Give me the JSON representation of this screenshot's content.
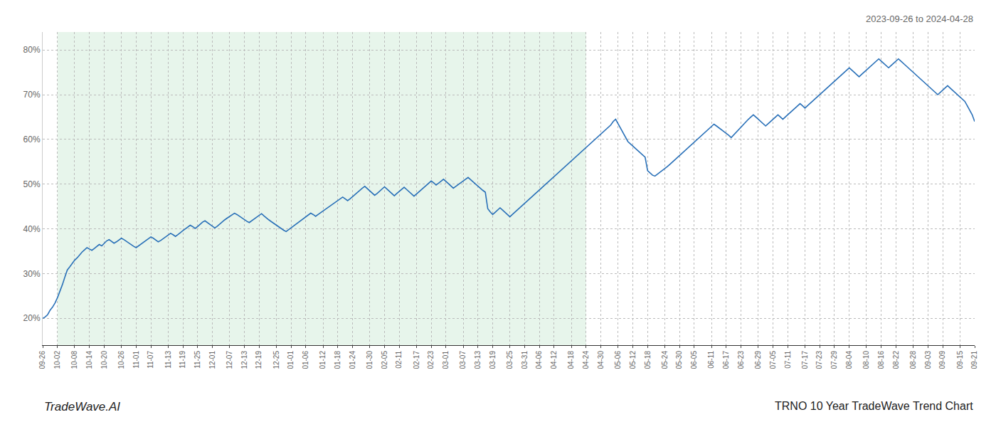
{
  "chart_data": {
    "type": "line",
    "title": "TRNO 10 Year TradeWave Trend Chart",
    "subtitle": "2023-09-26 to 2024-04-28",
    "annotations": [
      "TradeWave.AI"
    ],
    "color": "#2970b8",
    "shaded": {
      "from": "10-02",
      "to": "04-24",
      "color": "#d4edda"
    },
    "grid": true,
    "ylim": [
      14,
      84
    ],
    "yticks": [
      {
        "value": 20,
        "label": "20%"
      },
      {
        "value": 30,
        "label": "30%"
      },
      {
        "value": 40,
        "label": "40%"
      },
      {
        "value": 50,
        "label": "50%"
      },
      {
        "value": 60,
        "label": "60%"
      },
      {
        "value": 70,
        "label": "70%"
      },
      {
        "value": 80,
        "label": "80%"
      }
    ],
    "categories": [
      "09-26",
      null,
      null,
      null,
      null,
      null,
      "10-02",
      null,
      null,
      null,
      null,
      null,
      null,
      "10-08",
      null,
      null,
      null,
      null,
      null,
      "10-14",
      null,
      null,
      null,
      null,
      null,
      "10-20",
      null,
      null,
      null,
      null,
      null,
      null,
      "10-26",
      null,
      null,
      null,
      null,
      null,
      "11-01",
      null,
      null,
      null,
      null,
      null,
      "11-07",
      null,
      null,
      null,
      null,
      null,
      null,
      "11-13",
      null,
      null,
      null,
      null,
      null,
      "11-19",
      null,
      null,
      null,
      null,
      null,
      "11-25",
      null,
      null,
      null,
      null,
      null,
      "12-01",
      null,
      null,
      null,
      null,
      null,
      null,
      "12-07",
      null,
      null,
      null,
      null,
      null,
      "12-13",
      null,
      null,
      null,
      null,
      null,
      "12-19",
      null,
      null,
      null,
      null,
      null,
      null,
      "12-25",
      null,
      null,
      null,
      null,
      null,
      "01-01",
      null,
      null,
      null,
      null,
      null,
      "01-06",
      null,
      null,
      null,
      null,
      null,
      null,
      "01-12",
      null,
      null,
      null,
      null,
      null,
      "01-18",
      null,
      null,
      null,
      null,
      null,
      "01-24",
      null,
      null,
      null,
      null,
      null,
      null,
      "01-30",
      null,
      null,
      null,
      null,
      null,
      "02-05",
      null,
      null,
      null,
      null,
      null,
      "02-11",
      null,
      null,
      null,
      null,
      null,
      null,
      "02-17",
      null,
      null,
      null,
      null,
      null,
      "02-23",
      null,
      null,
      null,
      null,
      null,
      "03-01",
      null,
      null,
      null,
      null,
      null,
      null,
      "03-07",
      null,
      null,
      null,
      null,
      null,
      "03-13",
      null,
      null,
      null,
      null,
      null,
      "03-19",
      null,
      null,
      null,
      null,
      null,
      null,
      "03-25",
      null,
      null,
      null,
      null,
      null,
      "03-31",
      null,
      null,
      null,
      null,
      null,
      "04-06",
      null,
      null,
      null,
      null,
      null,
      "04-12",
      null,
      null,
      null,
      null,
      null,
      null,
      "04-18",
      null,
      null,
      null,
      null,
      null,
      "04-24",
      null,
      null,
      null,
      null,
      null,
      "04-30",
      null,
      null,
      null,
      null,
      null,
      null,
      "05-06",
      null,
      null,
      null,
      null,
      null,
      "05-12",
      null,
      null,
      null,
      null,
      null,
      "05-18",
      null,
      null,
      null,
      null,
      null,
      null,
      "05-24",
      null,
      null,
      null,
      null,
      null,
      "05-30",
      null,
      null,
      null,
      null,
      null,
      "06-05",
      null,
      null,
      null,
      null,
      null,
      null,
      "06-11",
      null,
      null,
      null,
      null,
      null,
      "06-17",
      null,
      null,
      null,
      null,
      null,
      "06-23",
      null,
      null,
      null,
      null,
      null,
      null,
      "06-29",
      null,
      null,
      null,
      null,
      null,
      "07-05",
      null,
      null,
      null,
      null,
      null,
      "07-11",
      null,
      null,
      null,
      null,
      null,
      null,
      "07-17",
      null,
      null,
      null,
      null,
      null,
      "07-23",
      null,
      null,
      null,
      null,
      null,
      "07-29",
      null,
      null,
      null,
      null,
      null,
      "08-04",
      null,
      null,
      null,
      null,
      null,
      null,
      "08-10",
      null,
      null,
      null,
      null,
      null,
      "08-16",
      null,
      null,
      null,
      null,
      null,
      "08-22",
      null,
      null,
      null,
      null,
      null,
      null,
      "08-28",
      null,
      null,
      null,
      null,
      null,
      "09-03",
      null,
      null,
      null,
      null,
      null,
      "09-09",
      null,
      null,
      null,
      null,
      null,
      null,
      "09-15",
      null,
      null,
      null,
      null,
      null,
      "09-21"
    ],
    "values": [
      20.0,
      20.3,
      20.8,
      21.8,
      22.5,
      23.4,
      24.6,
      26.0,
      27.5,
      29.2,
      30.8,
      31.5,
      32.2,
      33.0,
      33.5,
      34.2,
      34.8,
      35.3,
      35.8,
      35.5,
      35.2,
      35.6,
      36.0,
      36.5,
      36.2,
      36.8,
      37.3,
      37.6,
      37.2,
      36.8,
      37.1,
      37.5,
      37.9,
      37.6,
      37.2,
      36.8,
      36.4,
      36.1,
      35.8,
      36.2,
      36.6,
      36.9,
      37.3,
      37.8,
      38.2,
      37.9,
      37.5,
      37.1,
      37.4,
      37.8,
      38.3,
      38.7,
      39.0,
      38.7,
      38.3,
      38.7,
      39.2,
      39.6,
      40.0,
      40.4,
      40.8,
      40.5,
      40.1,
      40.5,
      41.0,
      41.5,
      41.8,
      41.4,
      41.0,
      40.6,
      40.2,
      40.6,
      41.1,
      41.6,
      42.0,
      42.4,
      42.8,
      43.2,
      43.5,
      43.2,
      42.8,
      42.4,
      42.0,
      41.7,
      41.4,
      41.8,
      42.2,
      42.6,
      43.0,
      43.4,
      42.9,
      42.4,
      42.0,
      41.6,
      41.2,
      40.8,
      40.4,
      40.0,
      39.7,
      39.4,
      39.8,
      40.2,
      40.7,
      41.1,
      41.5,
      41.9,
      42.3,
      42.7,
      43.1,
      43.5,
      43.2,
      42.8,
      43.2,
      43.6,
      44.0,
      44.4,
      44.8,
      45.2,
      45.6,
      46.0,
      46.4,
      46.8,
      47.1,
      46.7,
      46.3,
      46.7,
      47.2,
      47.7,
      48.2,
      48.6,
      49.1,
      49.5,
      49.0,
      48.5,
      48.0,
      47.5,
      47.9,
      48.4,
      48.9,
      49.4,
      48.9,
      48.4,
      47.9,
      47.4,
      47.9,
      48.4,
      48.9,
      49.3,
      48.8,
      48.3,
      47.8,
      47.3,
      47.8,
      48.3,
      48.8,
      49.3,
      49.8,
      50.2,
      50.7,
      50.3,
      49.8,
      50.2,
      50.7,
      51.1,
      50.6,
      50.1,
      49.6,
      49.1,
      49.5,
      49.9,
      50.3,
      50.7,
      51.1,
      51.5,
      51.0,
      50.5,
      50.0,
      49.5,
      49.0,
      48.6,
      48.2,
      44.5,
      43.8,
      43.2,
      43.7,
      44.2,
      44.7,
      44.2,
      43.7,
      43.2,
      42.7,
      43.2,
      43.7,
      44.2,
      44.7,
      45.2,
      45.7,
      46.2,
      46.7,
      47.2,
      47.7,
      48.2,
      48.7,
      49.2,
      49.7,
      50.2,
      50.7,
      51.2,
      51.7,
      52.2,
      52.7,
      53.2,
      53.7,
      54.2,
      54.7,
      55.2,
      55.7,
      56.2,
      56.7,
      57.2,
      57.7,
      58.2,
      58.7,
      59.2,
      59.7,
      60.2,
      60.7,
      61.2,
      61.7,
      62.2,
      62.7,
      63.2,
      64.0,
      64.5,
      63.5,
      62.5,
      61.5,
      60.5,
      59.5,
      59.0,
      58.5,
      58.0,
      57.5,
      57.0,
      56.5,
      56.0,
      53.0,
      52.5,
      52.0,
      51.8,
      52.2,
      52.6,
      53.0,
      53.4,
      53.9,
      54.4,
      54.9,
      55.4,
      55.9,
      56.4,
      56.9,
      57.4,
      57.9,
      58.4,
      58.9,
      59.4,
      59.9,
      60.4,
      60.9,
      61.4,
      61.9,
      62.4,
      62.9,
      63.4,
      63.0,
      62.6,
      62.2,
      61.8,
      61.4,
      60.9,
      60.4,
      61.0,
      61.6,
      62.2,
      62.8,
      63.4,
      64.0,
      64.5,
      65.0,
      65.5,
      65.0,
      64.5,
      64.0,
      63.5,
      63.0,
      63.5,
      64.0,
      64.5,
      65.0,
      65.5,
      65.0,
      64.5,
      65.0,
      65.5,
      66.0,
      66.5,
      67.0,
      67.5,
      68.0,
      67.5,
      67.0,
      67.5,
      68.0,
      68.5,
      69.0,
      69.5,
      70.0,
      70.5,
      71.0,
      71.5,
      72.0,
      72.5,
      73.0,
      73.5,
      74.0,
      74.5,
      75.0,
      75.5,
      76.0,
      75.5,
      75.0,
      74.5,
      74.0,
      74.5,
      75.0,
      75.5,
      76.0,
      76.5,
      77.0,
      77.5,
      78.0,
      77.5,
      77.0,
      76.5,
      76.0,
      76.5,
      77.0,
      77.5,
      78.0,
      77.5,
      77.0,
      76.5,
      76.0,
      75.5,
      75.0,
      74.5,
      74.0,
      73.5,
      73.0,
      72.5,
      72.0,
      71.5,
      71.0,
      70.5,
      70.0,
      70.5,
      71.0,
      71.5,
      72.0,
      71.5,
      71.0,
      70.5,
      70.0,
      69.5,
      69.0,
      68.5,
      67.5,
      66.5,
      65.5,
      64.0
    ]
  }
}
